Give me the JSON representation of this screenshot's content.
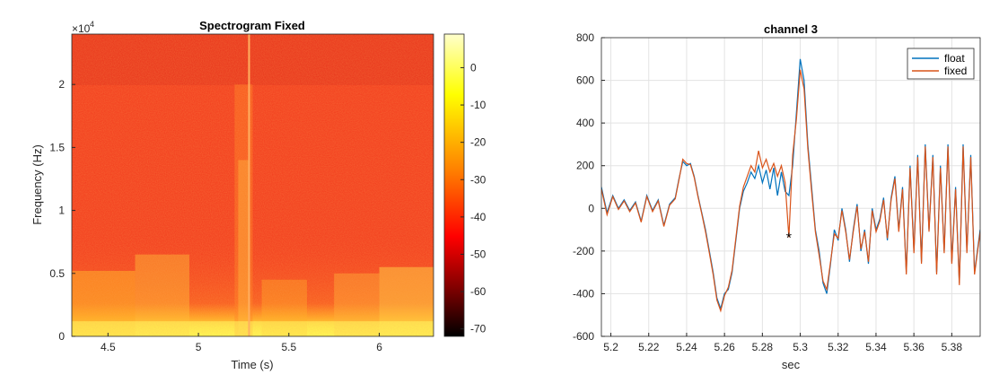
{
  "chart_data": [
    {
      "type": "heatmap",
      "title": "Spectrogram Fixed",
      "xlabel": "Time (s)",
      "ylabel": "Frequency (Hz)",
      "y_exponent_label": "×10",
      "y_exponent_power": "4",
      "xlim": [
        4.3,
        6.3
      ],
      "ylim": [
        0,
        24000
      ],
      "x_ticks": [
        4.5,
        5,
        5.5,
        6
      ],
      "x_tick_labels": [
        "4.5",
        "5",
        "5.5",
        "6"
      ],
      "y_ticks": [
        0,
        5000,
        10000,
        15000,
        20000
      ],
      "y_tick_labels": [
        "0",
        "0.5",
        "1",
        "1.5",
        "2"
      ],
      "colorbar": {
        "colormap": "autumn-hot",
        "clim": [
          -72,
          9
        ],
        "ticks": [
          0,
          -10,
          -20,
          -30,
          -40,
          -50,
          -60,
          -70
        ],
        "tick_labels": [
          "0",
          "-10",
          "-20",
          "-30",
          "-40",
          "-50",
          "-60",
          "-70"
        ],
        "colors": [
          "#000000",
          "#800000",
          "#ff0000",
          "#ff8000",
          "#ffff00",
          "#ffffcc"
        ]
      },
      "band_cutoff_hz": 20000,
      "vertical_line_time": 5.28,
      "background_color": "#f23a1c"
    },
    {
      "type": "line",
      "title": "channel 3",
      "xlabel": "sec",
      "ylabel": "",
      "xlim": [
        5.195,
        5.395
      ],
      "ylim": [
        -600,
        800
      ],
      "grid": true,
      "legend_position": "top-right",
      "x_ticks": [
        5.2,
        5.22,
        5.24,
        5.26,
        5.28,
        5.3,
        5.32,
        5.34,
        5.36,
        5.38
      ],
      "x_tick_labels": [
        "5.2",
        "5.22",
        "5.24",
        "5.26",
        "5.28",
        "5.3",
        "5.32",
        "5.34",
        "5.36",
        "5.38"
      ],
      "y_ticks": [
        -600,
        -400,
        -200,
        0,
        200,
        400,
        600,
        800
      ],
      "y_tick_labels": [
        "-600",
        "-400",
        "-200",
        "0",
        "200",
        "400",
        "600",
        "800"
      ],
      "marker": {
        "x": 5.294,
        "y": -135,
        "symbol": "*"
      },
      "series": [
        {
          "name": "float",
          "color": "#0072bd",
          "x": [
            5.195,
            5.198,
            5.201,
            5.204,
            5.207,
            5.21,
            5.213,
            5.216,
            5.219,
            5.222,
            5.225,
            5.228,
            5.231,
            5.234,
            5.236,
            5.238,
            5.24,
            5.242,
            5.244,
            5.246,
            5.248,
            5.25,
            5.252,
            5.254,
            5.256,
            5.258,
            5.26,
            5.262,
            5.264,
            5.266,
            5.268,
            5.27,
            5.272,
            5.274,
            5.276,
            5.278,
            5.28,
            5.282,
            5.284,
            5.286,
            5.288,
            5.29,
            5.292,
            5.294,
            5.296,
            5.298,
            5.3,
            5.302,
            5.304,
            5.306,
            5.308,
            5.31,
            5.312,
            5.314,
            5.316,
            5.318,
            5.32,
            5.322,
            5.324,
            5.326,
            5.328,
            5.33,
            5.332,
            5.334,
            5.336,
            5.338,
            5.34,
            5.342,
            5.344,
            5.346,
            5.348,
            5.35,
            5.352,
            5.354,
            5.356,
            5.358,
            5.36,
            5.362,
            5.364,
            5.366,
            5.368,
            5.37,
            5.372,
            5.374,
            5.376,
            5.378,
            5.38,
            5.382,
            5.384,
            5.386,
            5.388,
            5.39,
            5.392,
            5.395
          ],
          "y": [
            100,
            -20,
            60,
            0,
            40,
            -10,
            30,
            -60,
            60,
            -10,
            40,
            -80,
            20,
            50,
            140,
            220,
            200,
            210,
            150,
            60,
            -20,
            -100,
            -200,
            -300,
            -420,
            -470,
            -400,
            -380,
            -300,
            -150,
            0,
            80,
            120,
            170,
            140,
            200,
            120,
            180,
            90,
            190,
            60,
            170,
            80,
            60,
            200,
            450,
            700,
            600,
            300,
            100,
            -100,
            -200,
            -350,
            -400,
            -260,
            -100,
            -150,
            0,
            -100,
            -250,
            -100,
            20,
            -200,
            -100,
            -260,
            0,
            -100,
            -50,
            50,
            -150,
            50,
            150,
            -100,
            100,
            -300,
            200,
            -200,
            250,
            -250,
            300,
            -100,
            250,
            -300,
            200,
            -200,
            300,
            -250,
            100,
            -350,
            300,
            -200,
            250,
            -300,
            -100
          ]
        },
        {
          "name": "fixed",
          "color": "#d95319",
          "x": [
            5.195,
            5.198,
            5.201,
            5.204,
            5.207,
            5.21,
            5.213,
            5.216,
            5.219,
            5.222,
            5.225,
            5.228,
            5.231,
            5.234,
            5.236,
            5.238,
            5.24,
            5.242,
            5.244,
            5.246,
            5.248,
            5.25,
            5.252,
            5.254,
            5.256,
            5.258,
            5.26,
            5.262,
            5.264,
            5.266,
            5.268,
            5.27,
            5.272,
            5.274,
            5.276,
            5.278,
            5.28,
            5.282,
            5.284,
            5.286,
            5.288,
            5.29,
            5.292,
            5.294,
            5.296,
            5.298,
            5.3,
            5.302,
            5.304,
            5.306,
            5.308,
            5.31,
            5.312,
            5.314,
            5.316,
            5.318,
            5.32,
            5.322,
            5.324,
            5.326,
            5.328,
            5.33,
            5.332,
            5.334,
            5.336,
            5.338,
            5.34,
            5.342,
            5.344,
            5.346,
            5.348,
            5.35,
            5.352,
            5.354,
            5.356,
            5.358,
            5.36,
            5.362,
            5.364,
            5.366,
            5.368,
            5.37,
            5.372,
            5.374,
            5.376,
            5.378,
            5.38,
            5.382,
            5.384,
            5.386,
            5.388,
            5.39,
            5.392,
            5.395
          ],
          "y": [
            90,
            -30,
            55,
            -5,
            35,
            -15,
            25,
            -65,
            55,
            -15,
            35,
            -85,
            15,
            45,
            135,
            230,
            210,
            205,
            145,
            55,
            -25,
            -110,
            -210,
            -310,
            -430,
            -480,
            -410,
            -370,
            -290,
            -140,
            10,
            100,
            150,
            200,
            170,
            270,
            190,
            230,
            170,
            210,
            150,
            200,
            120,
            -135,
            250,
            420,
            650,
            560,
            280,
            80,
            -110,
            -220,
            -340,
            -380,
            -250,
            -120,
            -140,
            -10,
            -110,
            -240,
            -110,
            10,
            -190,
            -110,
            -250,
            -10,
            -110,
            -60,
            40,
            -140,
            40,
            140,
            -110,
            90,
            -310,
            190,
            -210,
            240,
            -260,
            290,
            -110,
            240,
            -310,
            190,
            -210,
            290,
            -260,
            90,
            -360,
            290,
            -210,
            240,
            -310,
            -110
          ]
        }
      ]
    }
  ]
}
